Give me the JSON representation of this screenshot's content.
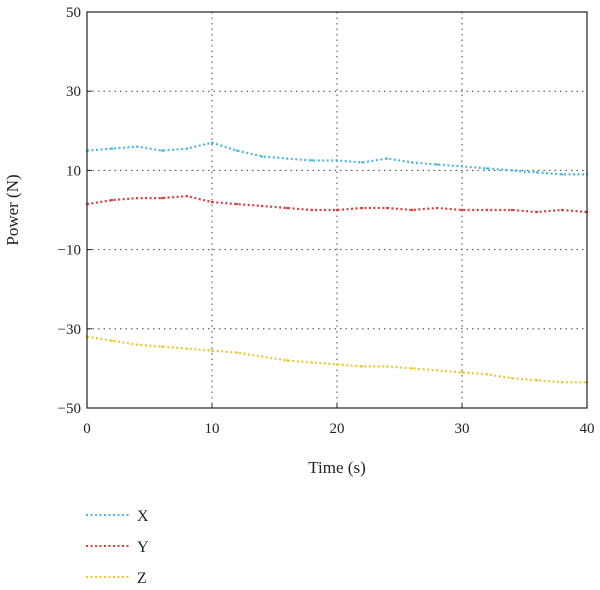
{
  "chart_data": {
    "type": "line",
    "title": "",
    "xlabel": "Time (s)",
    "ylabel": "Power (N)",
    "xlim": [
      0,
      40
    ],
    "ylim": [
      -50,
      50
    ],
    "xticks": [
      0,
      10,
      20,
      30,
      40
    ],
    "yticks": [
      -50,
      -30,
      -10,
      10,
      30,
      50
    ],
    "grid": "dotted, x and y",
    "line_style": "dotted",
    "legend_position": "below the plot, left",
    "x": [
      0,
      2,
      4,
      6,
      8,
      10,
      12,
      14,
      16,
      18,
      20,
      22,
      24,
      26,
      28,
      30,
      32,
      34,
      36,
      38,
      40
    ],
    "series": [
      {
        "name": "X",
        "color": "#4db8df",
        "values": [
          15,
          15.5,
          16,
          15,
          15.5,
          17,
          15,
          13.5,
          13,
          12.5,
          12.5,
          12,
          13,
          12,
          11.5,
          11,
          10.5,
          10,
          9.5,
          9,
          9
        ]
      },
      {
        "name": "Y",
        "color": "#e03a3a",
        "values": [
          1.5,
          2.5,
          3,
          3,
          3.5,
          2,
          1.5,
          1,
          0.5,
          0,
          0,
          0.5,
          0.5,
          0,
          0.5,
          0,
          0,
          0,
          -0.5,
          0,
          -0.5
        ]
      },
      {
        "name": "Z",
        "color": "#ecc830",
        "values": [
          -32,
          -33,
          -34,
          -34.5,
          -35,
          -35.5,
          -36,
          -37,
          -38,
          -38.5,
          -39,
          -39.5,
          -39.5,
          -40,
          -40.5,
          -41,
          -41.5,
          -42.5,
          -43,
          -43.5,
          -43.5
        ]
      }
    ]
  }
}
